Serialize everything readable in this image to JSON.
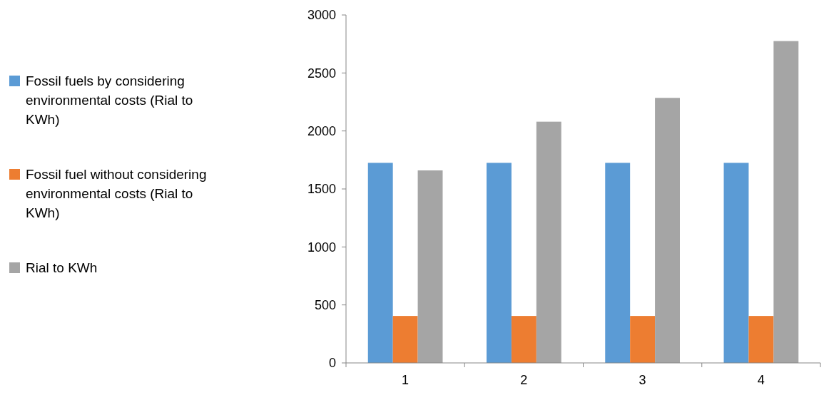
{
  "chart_data": {
    "type": "bar",
    "categories": [
      "1",
      "2",
      "3",
      "4"
    ],
    "series": [
      {
        "name": "Fossil fuels by considering environmental costs (Rial to KWh)",
        "color": "#5b9bd5",
        "values": [
          1725,
          1725,
          1725,
          1725
        ]
      },
      {
        "name": "Fossil fuel without considering environmental costs (Rial to KWh)",
        "color": "#ed7d31",
        "values": [
          405,
          405,
          405,
          405
        ]
      },
      {
        "name": "Rial to KWh",
        "color": "#a5a5a5",
        "values": [
          1660,
          2080,
          2285,
          2775
        ]
      }
    ],
    "ylim": [
      0,
      3000
    ],
    "yticks": [
      0,
      500,
      1000,
      1500,
      2000,
      2500,
      3000
    ],
    "grid": false,
    "legend": "left"
  }
}
